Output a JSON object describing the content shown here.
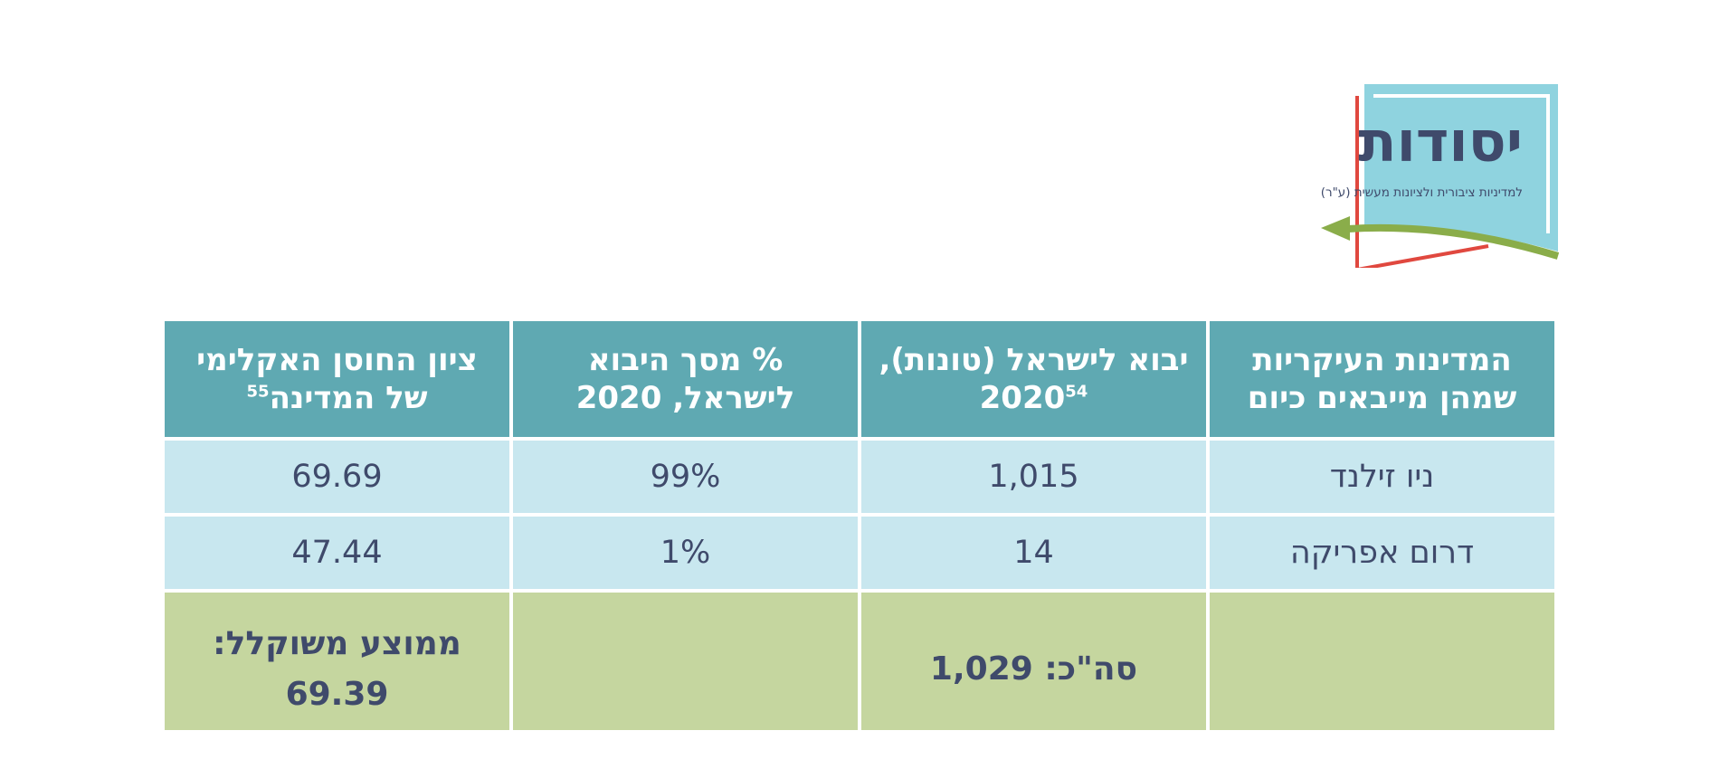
{
  "logo": {
    "title": "יסודות",
    "subtitle": "למדיניות ציבורית ולציונות מעשית (ע\"ר)"
  },
  "table": {
    "headers": [
      {
        "line1": "המדינות העיקריות",
        "line2": "שמהן מייבאים כיום",
        "sup": ""
      },
      {
        "line1": "יבוא לישראל (טונות),",
        "line2": "2020",
        "sup": "54"
      },
      {
        "line1": "% מסך היבוא",
        "line2": "לישראל, 2020",
        "sup": ""
      },
      {
        "line1": "ציון החוסן האקלימי",
        "line2": "של המדינה",
        "sup": "55"
      }
    ],
    "rows": [
      [
        "ניו זילנד",
        "1,015",
        "99%",
        "69.69"
      ],
      [
        "דרום אפריקה",
        "14",
        "1%",
        "47.44"
      ]
    ],
    "total": {
      "country": "",
      "imports": "סה\"כ: 1,029",
      "percent": "",
      "score_label": "ממוצע משוקלל:",
      "score_value": "69.39"
    }
  },
  "colors": {
    "header_bg": "#5fa9b2",
    "body_bg": "#c8e7ef",
    "total_bg": "#c5d69f",
    "text": "#3f4a6b",
    "logo_blue": "#8fd3df",
    "logo_red": "#e0483f",
    "logo_green": "#8aad4a"
  }
}
